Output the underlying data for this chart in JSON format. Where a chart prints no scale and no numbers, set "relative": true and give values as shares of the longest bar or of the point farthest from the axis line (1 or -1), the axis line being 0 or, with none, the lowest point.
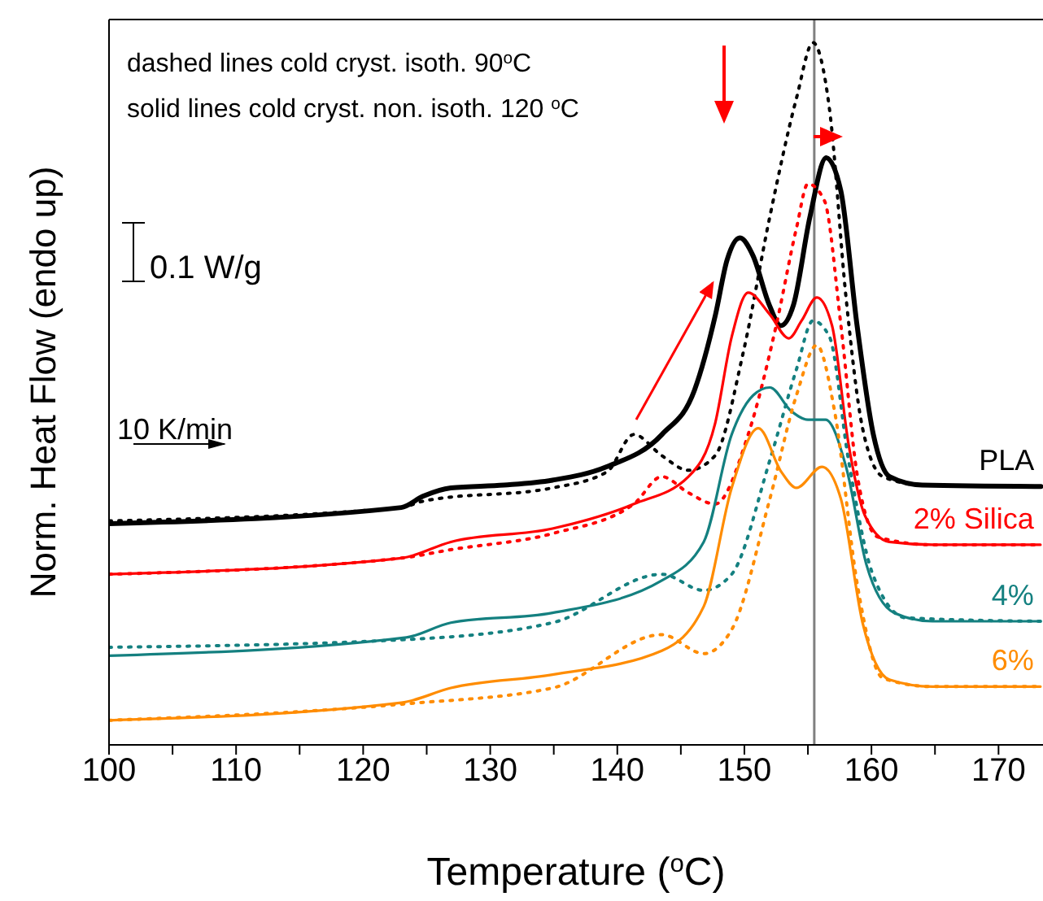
{
  "chart_data": {
    "type": "line",
    "relative": true,
    "xlabel": "Temperature ($^{o}$C)",
    "ylabel": "Norm. Heat Flow (endo up)",
    "annotations": [
      "dashed lines cold cryst. isoth. 90$^{o}$C",
      "solid lines cold cryst. non. isoth. 120 $^{o}$C",
      "0.1 W/g",
      "10 K/min"
    ],
    "xlim": [
      100,
      173.5
    ],
    "xticks": [
      100,
      {
        "value": 105,
        "label": null
      },
      110,
      {
        "value": 115,
        "label": null
      },
      120,
      {
        "value": 125,
        "label": null
      },
      130,
      {
        "value": 135,
        "label": null
      },
      140,
      {
        "value": 145,
        "label": null
      },
      150,
      {
        "value": 155,
        "label": null
      },
      160,
      {
        "value": 165,
        "label": null
      },
      170
    ],
    "tick_labels": "x",
    "marker": "none",
    "ref_lines": [
      {
        "axis": "x",
        "value": 155.5,
        "color": "#808080"
      }
    ],
    "series": [
      {
        "name": "PLA",
        "color": "#000000",
        "line_style": "solid",
        "x": [
          100,
          123.0,
          124.7,
          126.9,
          131.1,
          134.9,
          139.16,
          143.51,
          146.07,
          147.73,
          148.63,
          149.65,
          150.67,
          151.95,
          152.85,
          153.87,
          155.16,
          156.44,
          157.59,
          158.87,
          160.15,
          161.43,
          163.99,
          173.33
        ],
        "values": [
          0.315,
          0.338,
          0.354,
          0.366,
          0.37,
          0.377,
          0.396,
          0.442,
          0.505,
          0.613,
          0.69,
          0.722,
          0.697,
          0.627,
          0.597,
          0.627,
          0.752,
          0.836,
          0.789,
          0.597,
          0.442,
          0.382,
          0.37,
          0.368
        ]
      },
      {
        "color": "#000000",
        "line_style": "dotted",
        "x": [
          100,
          123.0,
          124.7,
          134.9,
          139.2,
          141.3,
          143.5,
          145.6,
          147.7,
          149.9,
          152.0,
          154.1,
          155.4,
          156.7,
          158.0,
          159.3,
          160.9,
          164.0,
          173.3
        ],
        "values": [
          0.319,
          0.338,
          0.347,
          0.366,
          0.389,
          0.442,
          0.412,
          0.391,
          0.412,
          0.558,
          0.752,
          0.921,
          1.0,
          0.905,
          0.637,
          0.451,
          0.382,
          0.37,
          0.368
        ]
      },
      {
        "name": "2% Silica",
        "color": "#ff0000",
        "line_style": "solid",
        "x": [
          100,
          123.0,
          126.9,
          134.9,
          141.3,
          145.6,
          147.7,
          149.0,
          150.3,
          152.0,
          153.5,
          154.5,
          155.7,
          156.9,
          158.2,
          159.5,
          161.4,
          164.8,
          173.3
        ],
        "values": [
          0.243,
          0.266,
          0.289,
          0.308,
          0.343,
          0.382,
          0.458,
          0.581,
          0.644,
          0.613,
          0.579,
          0.604,
          0.637,
          0.597,
          0.428,
          0.326,
          0.289,
          0.285,
          0.285
        ]
      },
      {
        "color": "#ff0000",
        "line_style": "dotted",
        "x": [
          100,
          123.0,
          126.9,
          134.9,
          141.3,
          143.5,
          145.6,
          147.7,
          150.3,
          152.5,
          154.1,
          155.0,
          156.3,
          157.6,
          158.9,
          160.5,
          164.8,
          173.3
        ],
        "values": [
          0.243,
          0.266,
          0.278,
          0.301,
          0.343,
          0.382,
          0.359,
          0.343,
          0.442,
          0.597,
          0.736,
          0.799,
          0.775,
          0.597,
          0.382,
          0.296,
          0.285,
          0.285
        ]
      },
      {
        "name": "4%",
        "color": "#148080",
        "line_style": "solid",
        "x": [
          100,
          123.4,
          126.9,
          134.9,
          143.5,
          146.8,
          149.0,
          150.7,
          152.0,
          153.7,
          155.0,
          156.4,
          158.0,
          159.6,
          161.8,
          164.8,
          173.3
        ],
        "values": [
          0.127,
          0.153,
          0.174,
          0.188,
          0.234,
          0.289,
          0.442,
          0.498,
          0.509,
          0.475,
          0.463,
          0.463,
          0.396,
          0.257,
          0.188,
          0.176,
          0.176
        ]
      },
      {
        "color": "#148080",
        "line_style": "dotted",
        "x": [
          100,
          123.4,
          134.9,
          143.5,
          146.8,
          149.0,
          152.0,
          154.1,
          155.4,
          156.7,
          158.2,
          160.1,
          162.7,
          173.3
        ],
        "values": [
          0.139,
          0.15,
          0.174,
          0.243,
          0.22,
          0.243,
          0.405,
          0.535,
          0.604,
          0.581,
          0.405,
          0.243,
          0.181,
          0.176
        ]
      },
      {
        "name": "6%",
        "color": "#ff8c00",
        "line_style": "solid",
        "x": [
          100,
          123.0,
          126.9,
          134.9,
          143.5,
          146.8,
          149.0,
          151.1,
          152.9,
          154.1,
          156.1,
          157.6,
          159.3,
          161.4,
          164.8,
          173.3
        ],
        "values": [
          0.035,
          0.06,
          0.081,
          0.1,
          0.134,
          0.197,
          0.366,
          0.451,
          0.389,
          0.366,
          0.396,
          0.35,
          0.174,
          0.093,
          0.083,
          0.083
        ]
      },
      {
        "color": "#ff8c00",
        "line_style": "dotted",
        "x": [
          100,
          123.0,
          134.9,
          143.5,
          146.8,
          149.0,
          152.0,
          154.1,
          155.7,
          157.1,
          158.9,
          160.9,
          164.8,
          173.3
        ],
        "values": [
          0.035,
          0.058,
          0.081,
          0.157,
          0.13,
          0.164,
          0.35,
          0.498,
          0.569,
          0.475,
          0.227,
          0.095,
          0.083,
          0.083
        ]
      }
    ]
  }
}
